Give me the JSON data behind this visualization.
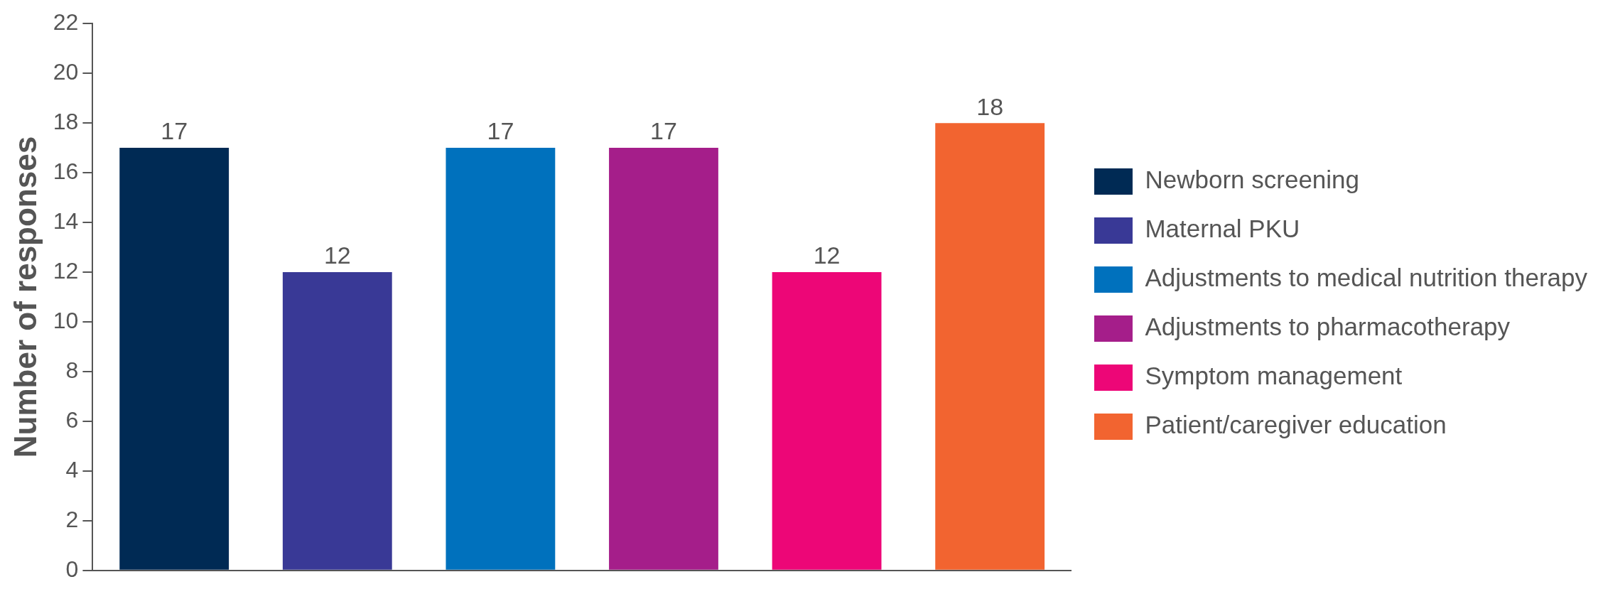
{
  "chart_data": {
    "type": "bar",
    "ylabel": "Number of responses",
    "categories": [
      null,
      null,
      null,
      null,
      null,
      null
    ],
    "series": [
      {
        "name": "Newborn screening",
        "color": "#002a54",
        "values": [
          17,
          null,
          null,
          null,
          null,
          null
        ]
      },
      {
        "name": "Maternal PKU",
        "color": "#393996",
        "values": [
          null,
          12,
          null,
          null,
          null,
          null
        ]
      },
      {
        "name": "Adjustments to medical nutrition therapy",
        "color": "#0071bd",
        "values": [
          null,
          null,
          17,
          null,
          null,
          null
        ]
      },
      {
        "name": "Adjustments to pharmacotherapy",
        "color": "#a51e8a",
        "values": [
          null,
          null,
          null,
          17,
          null,
          null
        ]
      },
      {
        "name": "Symptom management",
        "color": "#ed0677",
        "values": [
          null,
          null,
          null,
          null,
          12,
          null
        ]
      },
      {
        "name": "Patient/caregiver education",
        "color": "#f26430",
        "values": [
          null,
          null,
          null,
          null,
          null,
          18
        ]
      }
    ],
    "ylim": [
      0,
      22
    ],
    "yticks": [
      0,
      2,
      4,
      6,
      8,
      10,
      12,
      14,
      16,
      18,
      20,
      22
    ],
    "grid": false,
    "legend": "right",
    "tick_labels": "y",
    "data_labels": true
  }
}
